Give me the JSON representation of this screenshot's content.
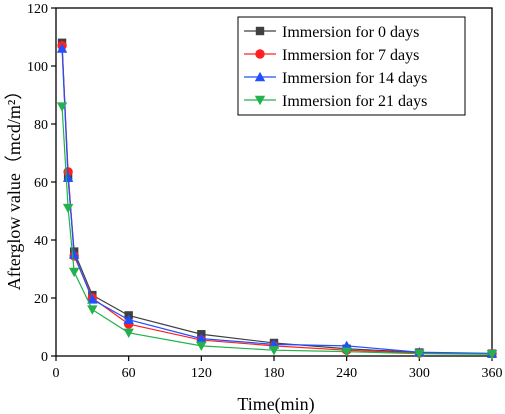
{
  "chart_data": {
    "type": "line",
    "xlabel": "Time(min)",
    "ylabel": "Afterglow value（mcd/m²）",
    "xlim": [
      0,
      360
    ],
    "ylim": [
      0,
      120
    ],
    "xticks": [
      0,
      60,
      120,
      180,
      240,
      300,
      360
    ],
    "yticks": [
      0,
      20,
      40,
      60,
      80,
      100,
      120
    ],
    "grid": false,
    "legend_position": "top-right",
    "series": [
      {
        "name": "Immersion for 0 days",
        "color": "#404040",
        "marker": "square",
        "x": [
          5,
          10,
          15,
          30,
          60,
          120,
          180,
          240,
          300,
          360
        ],
        "y": [
          108,
          61.5,
          36,
          21,
          14,
          7.5,
          4.5,
          2.5,
          1.2,
          0.8
        ]
      },
      {
        "name": "Immersion for 7 days",
        "color": "#ff2020",
        "marker": "circle",
        "x": [
          5,
          10,
          15,
          30,
          60,
          120,
          180,
          240,
          300,
          360
        ],
        "y": [
          107,
          63.5,
          34.5,
          20,
          11,
          5.5,
          3.5,
          2,
          1,
          0.8
        ]
      },
      {
        "name": "Immersion for 14 days",
        "color": "#1f4fff",
        "marker": "triangle-up",
        "x": [
          5,
          10,
          15,
          30,
          60,
          120,
          180,
          240,
          300,
          360
        ],
        "y": [
          106,
          61.5,
          35,
          19.5,
          12.5,
          6,
          4,
          3.5,
          1.3,
          0.9
        ]
      },
      {
        "name": "Immersion for 21 days",
        "color": "#22b14c",
        "marker": "triangle-down",
        "x": [
          5,
          10,
          15,
          30,
          60,
          120,
          180,
          240,
          300,
          360
        ],
        "y": [
          86,
          51,
          29,
          16,
          8,
          3.5,
          2,
          1.5,
          0.8,
          0.6
        ]
      }
    ]
  }
}
